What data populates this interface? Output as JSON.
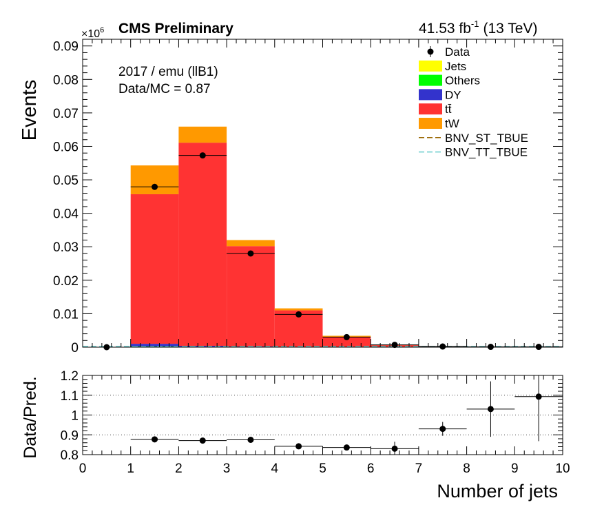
{
  "header": {
    "cms": "CMS Preliminary",
    "lumi": "41.53 fb",
    "lumi_exp": "-1",
    "energy": "(13 TeV)",
    "multiplier_base": "×10",
    "multiplier_exp": "6"
  },
  "info": {
    "line1": "2017 / emu (llB1)",
    "line2": "Data/MC = 0.87"
  },
  "colors": {
    "Jets": "#ffff00",
    "Others": "#00ff00",
    "DY": "#3333cc",
    "ttbar": "#ff3333",
    "tW": "#ff9900",
    "BNV_ST_TBUE": "#996600",
    "BNV_TT_TBUE": "#66cccc"
  },
  "chart_data": [
    {
      "type": "bar",
      "stacked": true,
      "xlabel": "Number of jets",
      "ylabel": "Events",
      "xlim": [
        0,
        10
      ],
      "ylim": [
        0,
        0.092
      ],
      "y_multiplier": "×10^6",
      "bin_edges": [
        0,
        1,
        2,
        3,
        4,
        5,
        6,
        7,
        8,
        9,
        10
      ],
      "xticks": [
        "0",
        "1",
        "2",
        "3",
        "4",
        "5",
        "6",
        "7",
        "8",
        "9",
        "10"
      ],
      "yticks": [
        "0",
        "0.01",
        "0.02",
        "0.03",
        "0.04",
        "0.05",
        "0.06",
        "0.07",
        "0.08",
        "0.09"
      ],
      "series": [
        {
          "name": "Jets",
          "values": [
            0,
            0,
            0,
            0,
            0,
            0,
            0,
            0,
            0,
            0
          ]
        },
        {
          "name": "Others",
          "values": [
            0,
            0.0002,
            0.0001,
            0.0001,
            0,
            0,
            0,
            0,
            0,
            0
          ]
        },
        {
          "name": "DY",
          "values": [
            0,
            0.0008,
            0.0003,
            0.0001,
            0,
            0,
            0,
            0,
            0,
            0
          ]
        },
        {
          "name": "tt̄",
          "values": [
            0,
            0.0447,
            0.0607,
            0.03,
            0.011,
            0.0031,
            0.0006,
            0.0001,
            0,
            0
          ]
        },
        {
          "name": "tW",
          "values": [
            0,
            0.0086,
            0.0048,
            0.0018,
            0.0006,
            0.0003,
            0.0001,
            0,
            0,
            0
          ]
        }
      ],
      "signals": [
        {
          "name": "BNV_ST_TBUE",
          "style": "dashed"
        },
        {
          "name": "BNV_TT_TBUE",
          "style": "dashed"
        }
      ],
      "data": {
        "name": "Data",
        "x": [
          0.5,
          1.5,
          2.5,
          3.5,
          4.5,
          5.5,
          6.5,
          7.5,
          8.5,
          9.5
        ],
        "y": [
          0,
          0.0479,
          0.0573,
          0.028,
          0.0098,
          0.003,
          0.0007,
          0.0002,
          0.0001,
          0.0001
        ]
      },
      "legend": [
        "Data",
        "Jets",
        "Others",
        "DY",
        "tt̄",
        "tW",
        "BNV_ST_TBUE",
        "BNV_TT_TBUE"
      ],
      "legend_position": "top-right"
    },
    {
      "type": "scatter",
      "xlabel": "Number of jets",
      "ylabel": "Data/Pred.",
      "xlim": [
        0,
        10
      ],
      "ylim": [
        0.8,
        1.2
      ],
      "yticks": [
        "0.8",
        "0.9",
        "1",
        "1.1",
        "1.2"
      ],
      "grid_y": [
        0.9,
        1.0,
        1.1
      ],
      "x": [
        1.5,
        2.5,
        3.5,
        4.5,
        5.5,
        6.5,
        7.5,
        8.5,
        9.5
      ],
      "y": [
        0.877,
        0.871,
        0.875,
        0.842,
        0.836,
        0.83,
        0.93,
        1.03,
        1.093
      ],
      "yerr": [
        0.003,
        0.003,
        0.004,
        0.006,
        0.01,
        0.035,
        0.035,
        0.14,
        0.225
      ]
    }
  ]
}
